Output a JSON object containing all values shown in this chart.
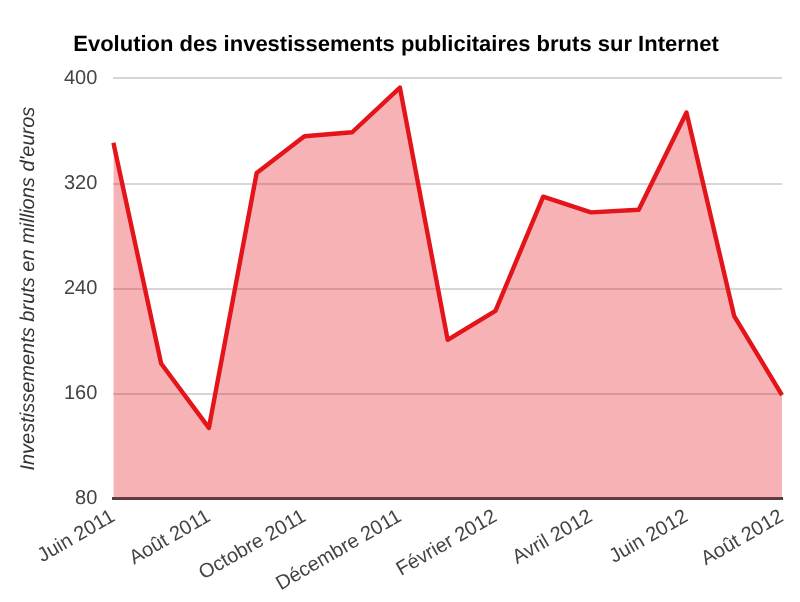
{
  "chart_data": {
    "type": "area",
    "title": "Evolution des investissements publicitaires bruts sur Internet",
    "ylabel": "Investissements bruts en millions d'euros",
    "categories": [
      "Juin 2011",
      null,
      "Août 2011",
      null,
      "Octobre 2011",
      null,
      "Décembre 2011",
      null,
      "Février 2012",
      null,
      "Avril 2012",
      null,
      "Juin 2012",
      null,
      "Août 2012"
    ],
    "series": [
      {
        "color": "#e3141a",
        "values": [
          351,
          183,
          134,
          328,
          356,
          359,
          393,
          201,
          223,
          310,
          298,
          300,
          374,
          219,
          159
        ]
      }
    ],
    "ylim": [
      80,
      400
    ],
    "yticks": [
      80,
      160,
      240,
      320,
      400
    ],
    "grid": "y",
    "legend": false,
    "marker": "none",
    "line_style": "solid"
  }
}
